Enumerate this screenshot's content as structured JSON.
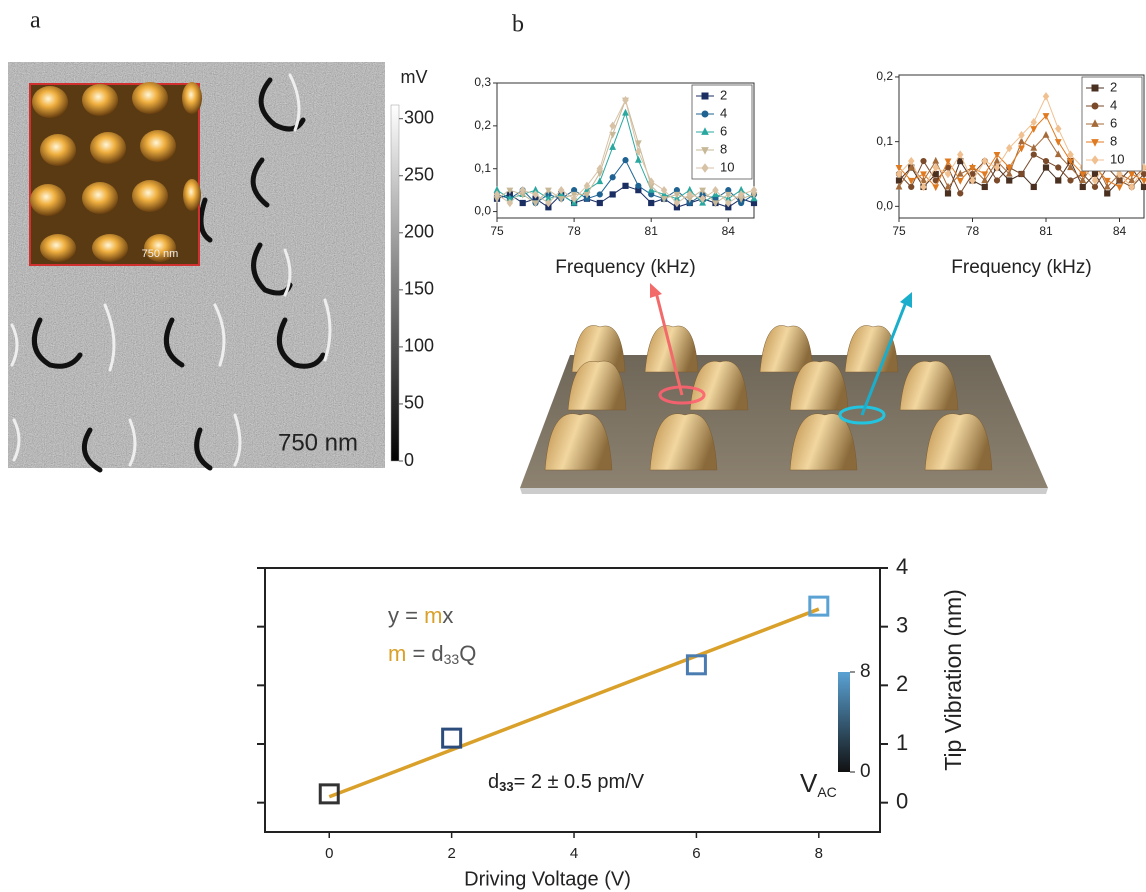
{
  "panel_labels": [
    "a",
    "b"
  ],
  "panel_a": {
    "colorbar": {
      "unit": "mV",
      "ylim": [
        0,
        312
      ],
      "ticks": [
        0,
        50,
        100,
        150,
        200,
        250,
        300
      ]
    },
    "scale_bar": "750 nm",
    "inset_scale_bar": "750 nm"
  },
  "chart_data": [
    {
      "type": "line",
      "x_label": "Frequency (kHz)",
      "xlim": [
        75,
        85
      ],
      "xticks": [
        75,
        78,
        81,
        84
      ],
      "ylim": [
        -0.015,
        0.3
      ],
      "yticks": [
        {
          "value": 0,
          "label": "0,0"
        },
        {
          "value": 0.1,
          "label": "0,1"
        },
        {
          "value": 0.2,
          "label": "0,2"
        },
        {
          "value": 0.3,
          "label": "0,3"
        }
      ],
      "x": [
        75,
        75.5,
        76,
        76.5,
        77,
        77.5,
        78,
        78.5,
        79,
        79.5,
        80,
        80.5,
        81,
        81.5,
        82,
        82.5,
        83,
        83.5,
        84,
        84.5,
        85
      ],
      "series": [
        {
          "name": "2",
          "color": "#1b2f63",
          "marker": "square",
          "values": [
            0.03,
            0.04,
            0.02,
            0.03,
            0.01,
            0.04,
            0.02,
            0.03,
            0.02,
            0.04,
            0.06,
            0.05,
            0.02,
            0.03,
            0.01,
            0.02,
            0.03,
            0.02,
            0.01,
            0.03,
            0.02
          ]
        },
        {
          "name": "4",
          "color": "#1f6392",
          "marker": "circle",
          "values": [
            0.04,
            0.03,
            0.05,
            0.02,
            0.04,
            0.03,
            0.05,
            0.03,
            0.04,
            0.08,
            0.12,
            0.06,
            0.04,
            0.03,
            0.05,
            0.02,
            0.04,
            0.03,
            0.05,
            0.02,
            0.04
          ]
        },
        {
          "name": "6",
          "color": "#2aa8a0",
          "marker": "triangle",
          "values": [
            0.05,
            0.03,
            0.04,
            0.05,
            0.03,
            0.04,
            0.02,
            0.05,
            0.07,
            0.15,
            0.23,
            0.12,
            0.05,
            0.04,
            0.03,
            0.05,
            0.02,
            0.04,
            0.03,
            0.05,
            0.03
          ]
        },
        {
          "name": "8",
          "color": "#c7b897",
          "marker": "triangle-down",
          "values": [
            0.03,
            0.05,
            0.04,
            0.02,
            0.05,
            0.03,
            0.04,
            0.04,
            0.09,
            0.18,
            0.26,
            0.16,
            0.06,
            0.03,
            0.04,
            0.03,
            0.05,
            0.02,
            0.04,
            0.03,
            0.04
          ]
        },
        {
          "name": "10",
          "color": "#d8c2a6",
          "marker": "diamond",
          "values": [
            0.04,
            0.02,
            0.05,
            0.04,
            0.02,
            0.05,
            0.03,
            0.06,
            0.1,
            0.2,
            0.26,
            0.14,
            0.07,
            0.05,
            0.02,
            0.04,
            0.03,
            0.05,
            0.02,
            0.04,
            0.05
          ]
        }
      ]
    },
    {
      "type": "line",
      "x_label": "Frequency (kHz)",
      "xlim": [
        75,
        85
      ],
      "xticks": [
        75,
        78,
        81,
        84
      ],
      "ylim": [
        -0.018,
        0.203
      ],
      "yticks": [
        {
          "value": 0,
          "label": "0,0"
        },
        {
          "value": 0.1,
          "label": "0,1"
        },
        {
          "value": 0.2,
          "label": "0,2"
        }
      ],
      "x": [
        75,
        75.5,
        76,
        76.5,
        77,
        77.5,
        78,
        78.5,
        79,
        79.5,
        80,
        80.5,
        81,
        81.5,
        82,
        82.5,
        83,
        83.5,
        84,
        84.5,
        85
      ],
      "series": [
        {
          "name": "2",
          "color": "#4a3020",
          "marker": "square",
          "values": [
            0.04,
            0.06,
            0.03,
            0.05,
            0.02,
            0.07,
            0.04,
            0.03,
            0.06,
            0.04,
            0.05,
            0.03,
            0.06,
            0.04,
            0.07,
            0.03,
            0.05,
            0.02,
            0.04,
            0.06,
            0.03
          ]
        },
        {
          "name": "4",
          "color": "#7a4a2a",
          "marker": "circle",
          "values": [
            0.05,
            0.03,
            0.07,
            0.04,
            0.06,
            0.02,
            0.05,
            0.07,
            0.04,
            0.06,
            0.05,
            0.08,
            0.07,
            0.06,
            0.04,
            0.05,
            0.03,
            0.06,
            0.04,
            0.03,
            0.05
          ]
        },
        {
          "name": "6",
          "color": "#a46a3a",
          "marker": "triangle",
          "values": [
            0.03,
            0.06,
            0.04,
            0.07,
            0.03,
            0.05,
            0.06,
            0.04,
            0.07,
            0.05,
            0.1,
            0.09,
            0.11,
            0.08,
            0.06,
            0.04,
            0.07,
            0.03,
            0.05,
            0.04,
            0.06
          ]
        },
        {
          "name": "8",
          "color": "#e07a20",
          "marker": "triangle-down",
          "values": [
            0.06,
            0.04,
            0.05,
            0.03,
            0.07,
            0.04,
            0.06,
            0.05,
            0.08,
            0.06,
            0.09,
            0.12,
            0.14,
            0.1,
            0.07,
            0.05,
            0.06,
            0.04,
            0.03,
            0.05,
            0.04
          ]
        },
        {
          "name": "10",
          "color": "#f0c090",
          "marker": "diamond",
          "values": [
            0.05,
            0.07,
            0.03,
            0.06,
            0.05,
            0.08,
            0.04,
            0.07,
            0.06,
            0.09,
            0.11,
            0.13,
            0.17,
            0.12,
            0.08,
            0.06,
            0.04,
            0.07,
            0.05,
            0.03,
            0.06
          ]
        }
      ]
    },
    {
      "type": "scatter",
      "x_label": "Driving Voltage (V)",
      "y_label": "Tip Vibration (nm)",
      "xlim": [
        -1.05,
        9
      ],
      "xticks": [
        0,
        2,
        4,
        6,
        8
      ],
      "ylim": [
        -0.5,
        4
      ],
      "yticks": [
        0,
        1,
        2,
        3,
        4
      ],
      "x": [
        0,
        2,
        6,
        8
      ],
      "values": [
        0.15,
        1.1,
        2.35,
        3.35
      ],
      "point_colors": [
        "#333333",
        "#2c4c7c",
        "#4a7cb2",
        "#5aa2d4"
      ],
      "fit": {
        "color": "#d9a02a",
        "x": [
          0,
          8
        ],
        "y": [
          0.1,
          3.3
        ]
      },
      "annotations": {
        "eq1": [
          "y = ",
          "m",
          "x"
        ],
        "eq2": [
          "m",
          " = d",
          "33",
          "Q"
        ],
        "eq3": [
          "d",
          "33",
          "= 2 ± 0.5 pm/V"
        ]
      },
      "colorbar": {
        "label": [
          "V",
          "AC"
        ],
        "lim": [
          0,
          8
        ],
        "ticks": [
          0,
          8
        ]
      }
    }
  ]
}
